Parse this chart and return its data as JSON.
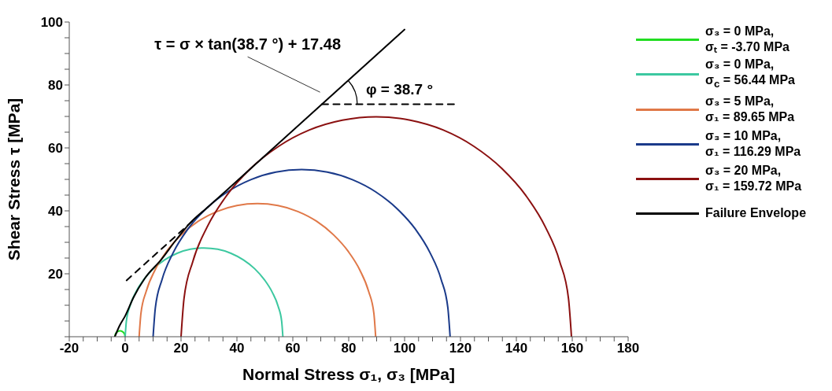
{
  "chart_data": {
    "type": "line",
    "xlabel": "Normal Stress σ₁, σ₃ [MPa]",
    "ylabel": "Shear Stress τ [MPa]",
    "xlim": [
      -20,
      180
    ],
    "xticks": [
      -20,
      {
        "value": -15,
        "label": null
      },
      {
        "value": -10,
        "label": null
      },
      {
        "value": -5,
        "label": null
      },
      0,
      {
        "value": 5,
        "label": null
      },
      {
        "value": 10,
        "label": null
      },
      {
        "value": 15,
        "label": null
      },
      20,
      {
        "value": 25,
        "label": null
      },
      {
        "value": 30,
        "label": null
      },
      {
        "value": 35,
        "label": null
      },
      40,
      {
        "value": 45,
        "label": null
      },
      {
        "value": 50,
        "label": null
      },
      {
        "value": 55,
        "label": null
      },
      60,
      {
        "value": 65,
        "label": null
      },
      {
        "value": 70,
        "label": null
      },
      {
        "value": 75,
        "label": null
      },
      80,
      {
        "value": 85,
        "label": null
      },
      {
        "value": 90,
        "label": null
      },
      {
        "value": 95,
        "label": null
      },
      100,
      {
        "value": 105,
        "label": null
      },
      {
        "value": 110,
        "label": null
      },
      {
        "value": 115,
        "label": null
      },
      120,
      {
        "value": 125,
        "label": null
      },
      {
        "value": 130,
        "label": null
      },
      {
        "value": 135,
        "label": null
      },
      140,
      {
        "value": 145,
        "label": null
      },
      {
        "value": 150,
        "label": null
      },
      {
        "value": 155,
        "label": null
      },
      160,
      {
        "value": 165,
        "label": null
      },
      {
        "value": 170,
        "label": null
      },
      {
        "value": 175,
        "label": null
      },
      180
    ],
    "ylim": [
      0,
      100
    ],
    "yticks": [
      {
        "value": 0,
        "label": null
      },
      {
        "value": 5,
        "label": null
      },
      {
        "value": 10,
        "label": null
      },
      {
        "value": 15,
        "label": null
      },
      20,
      {
        "value": 25,
        "label": null
      },
      {
        "value": 30,
        "label": null
      },
      {
        "value": 35,
        "label": null
      },
      40,
      {
        "value": 45,
        "label": null
      },
      {
        "value": 50,
        "label": null
      },
      {
        "value": 55,
        "label": null
      },
      60,
      {
        "value": 65,
        "label": null
      },
      {
        "value": 70,
        "label": null
      },
      {
        "value": 75,
        "label": null
      },
      80,
      {
        "value": 85,
        "label": null
      },
      {
        "value": 90,
        "label": null
      },
      {
        "value": 95,
        "label": null
      },
      100
    ],
    "marker": "none",
    "legend": "right",
    "annotations": [
      {
        "text": "τ = σ × tan(38.7 °) + 17.48",
        "x": 72,
        "y": 75.2
      },
      {
        "text": "φ = 38.7 °",
        "x": 70.4,
        "y": 73.9
      }
    ],
    "series": [
      {
        "name": "σ₃ = 0 MPa, σₜ = -3.70 MPa",
        "color": "#22dd22",
        "x": [
          -3.7,
          -3.45,
          -2.78,
          -1.85,
          -0.92,
          -0.25,
          0
        ],
        "values": [
          0,
          0.9,
          1.6,
          1.9,
          1.6,
          0.9,
          0
        ]
      },
      {
        "name": "σ₃ = 0 MPa, σ$_{c}$ = 56.44 MPa",
        "color": "#3cc8a0",
        "x": [
          0,
          0.43,
          1.7,
          3.78,
          6.6,
          10.08,
          14.11,
          18.57,
          23.32,
          28.22,
          33.12,
          37.87,
          42.33,
          46.36,
          49.84,
          52.66,
          54.74,
          56.01,
          56.44
        ],
        "values": [
          0,
          4.9,
          9.7,
          14.1,
          18.1,
          21.6,
          24.4,
          26.5,
          27.8,
          28.2,
          27.8,
          26.5,
          24.4,
          21.6,
          18.1,
          14.1,
          9.7,
          4.9,
          0
        ]
      },
      {
        "name": "σ₃ = 5 MPa, σ₁ = 89.65 MPa",
        "color": "#e07848",
        "x": [
          5,
          5.65,
          7.56,
          10.68,
          14.91,
          20.12,
          26.17,
          32.85,
          39.98,
          47.33,
          54.68,
          61.81,
          68.49,
          74.54,
          79.75,
          83.98,
          87.1,
          89.01,
          89.65
        ],
        "values": [
          0,
          7.4,
          14.5,
          21.2,
          27.2,
          32.4,
          36.7,
          39.8,
          41.7,
          42.3,
          41.7,
          39.8,
          36.7,
          32.4,
          27.2,
          21.2,
          14.5,
          7.4,
          0
        ]
      },
      {
        "name": "σ₃ = 10 MPa, σ₁ = 116.29 MPa",
        "color": "#1a3a8a",
        "x": [
          10,
          10.81,
          13.21,
          17.13,
          22.44,
          28.99,
          36.58,
          44.97,
          53.92,
          63.15,
          72.37,
          81.32,
          89.71,
          97.3,
          103.85,
          109.16,
          113.08,
          115.48,
          116.29
        ],
        "values": [
          0,
          9.2,
          18.2,
          26.6,
          34.2,
          40.7,
          46,
          49.9,
          52.3,
          53.1,
          52.3,
          49.9,
          46,
          40.7,
          34.2,
          26.6,
          18.2,
          9.2,
          0
        ]
      },
      {
        "name": "σ₃ = 20 MPa, σ₁ = 159.72 MPa",
        "color": "#8b1010",
        "x": [
          20,
          21.06,
          24.21,
          29.36,
          36.35,
          44.95,
          54.93,
          65.97,
          77.73,
          89.86,
          101.99,
          113.75,
          124.79,
          134.77,
          143.37,
          150.36,
          155.51,
          158.66,
          159.72
        ],
        "values": [
          0,
          12.1,
          23.9,
          34.9,
          44.9,
          53.5,
          60.5,
          65.7,
          68.8,
          69.9,
          68.8,
          65.7,
          60.5,
          53.5,
          44.9,
          34.9,
          23.9,
          12.1,
          0
        ]
      },
      {
        "name": "Failure Envelope",
        "color": "#000000",
        "x": [
          -3.7,
          -2,
          0,
          3,
          7,
          13,
          18,
          23,
          30,
          50,
          100
        ],
        "values": [
          0,
          3.5,
          6.6,
          12.5,
          18.5,
          24.6,
          30.5,
          35.9,
          41.5,
          57.5,
          97.6
        ]
      },
      {
        "color": "#000000",
        "line_style": "dashed",
        "x": [
          0.5,
          24
        ],
        "values": [
          17.9,
          36.7
        ]
      },
      {
        "color": "#000000",
        "line_style": "dashed",
        "x": [
          70.4,
          117.7
        ],
        "values": [
          73.9,
          73.9
        ]
      }
    ]
  }
}
